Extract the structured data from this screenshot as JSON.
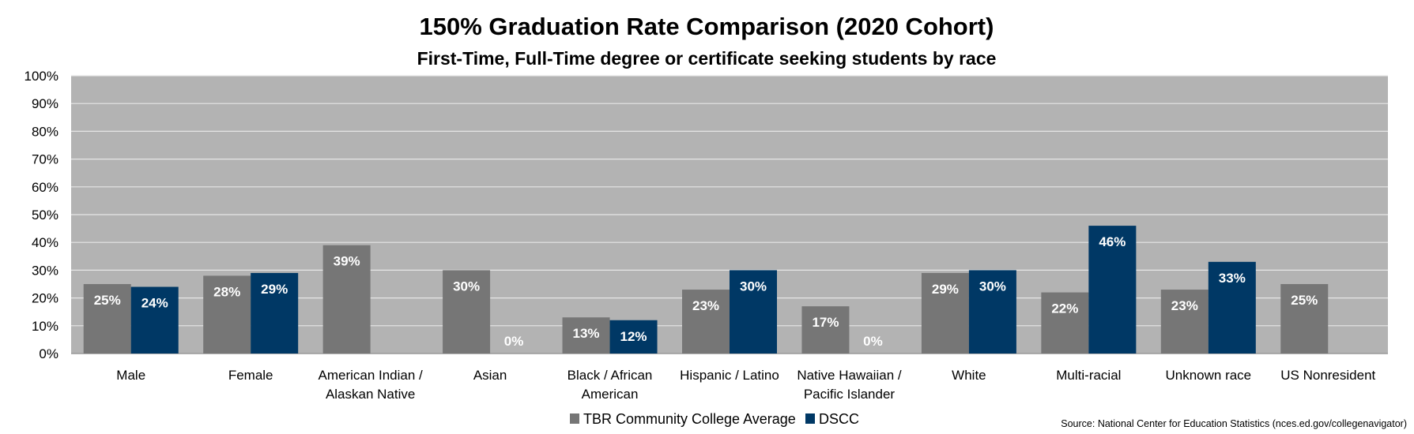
{
  "chart_data": {
    "type": "bar",
    "title": "150% Graduation Rate Comparison (2020 Cohort)",
    "subtitle": "First-Time, Full-Time degree or certificate seeking students by race",
    "categories": [
      [
        "Male"
      ],
      [
        "Female"
      ],
      [
        "American Indian /",
        "Alaskan Native"
      ],
      [
        "Asian"
      ],
      [
        "Black / African",
        "American"
      ],
      [
        "Hispanic / Latino"
      ],
      [
        "Native Hawaiian /",
        "Pacific Islander"
      ],
      [
        "White"
      ],
      [
        "Multi-racial"
      ],
      [
        "Unknown race"
      ],
      [
        "US Nonresident"
      ]
    ],
    "series": [
      {
        "name": "TBR Community College Average",
        "color": "#767676",
        "values": [
          25,
          28,
          39,
          30,
          13,
          23,
          17,
          29,
          22,
          23,
          25
        ],
        "labels": [
          "25%",
          "28%",
          "39%",
          "30%",
          "13%",
          "23%",
          "17%",
          "29%",
          "22%",
          "23%",
          "25%"
        ]
      },
      {
        "name": "DSCC",
        "color": "#003865",
        "values": [
          24,
          29,
          null,
          0,
          12,
          30,
          0,
          30,
          46,
          33,
          null
        ],
        "labels": [
          "24%",
          "29%",
          null,
          "0%",
          "12%",
          "30%",
          "0%",
          "30%",
          "46%",
          "33%",
          null
        ]
      }
    ],
    "y_ticks": [
      "0%",
      "10%",
      "20%",
      "30%",
      "40%",
      "50%",
      "60%",
      "70%",
      "80%",
      "90%",
      "100%"
    ],
    "ylim": [
      0,
      100
    ],
    "grid": true,
    "plot_background": "#b3b3b3",
    "gridline_color": "#e6e6e6",
    "legend_position": "bottom-center",
    "source": "Source: National Center for Education Statistics (nces.ed.gov/collegenavigator)"
  }
}
